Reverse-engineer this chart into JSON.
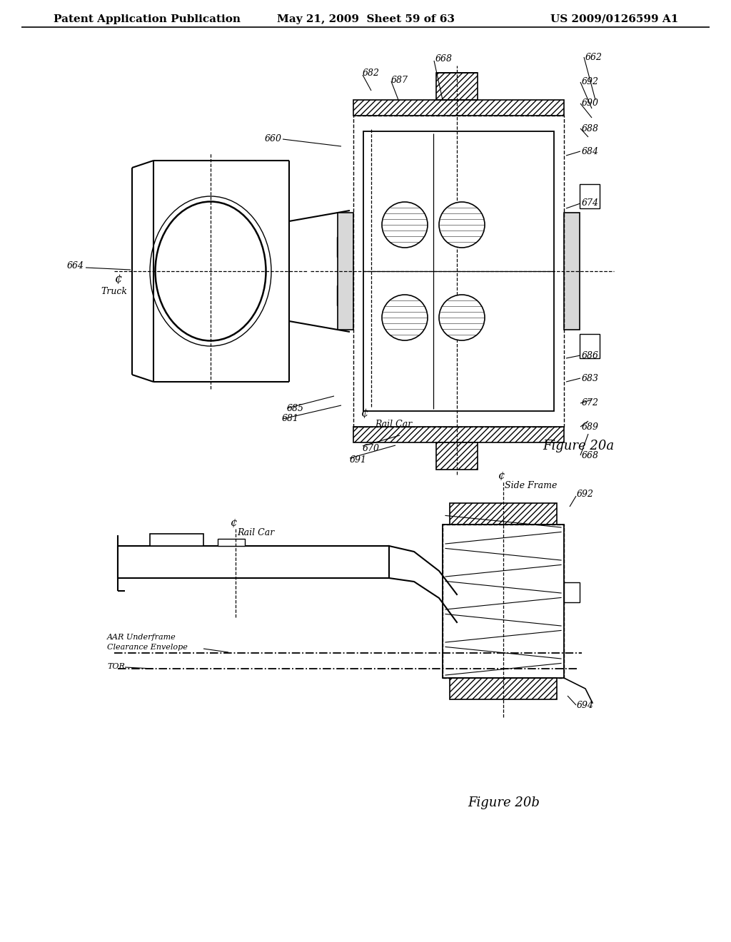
{
  "background_color": "#ffffff",
  "header_left": "Patent Application Publication",
  "header_middle": "May 21, 2009  Sheet 59 of 63",
  "header_right": "US 2009/0126599 A1",
  "header_fontsize": 11,
  "figure_caption_a": "Figure 20a",
  "figure_caption_b": "Figure 20b",
  "caption_fontsize": 13,
  "line_color": "#000000",
  "label_fontsize": 9,
  "italic_fontsize": 9
}
